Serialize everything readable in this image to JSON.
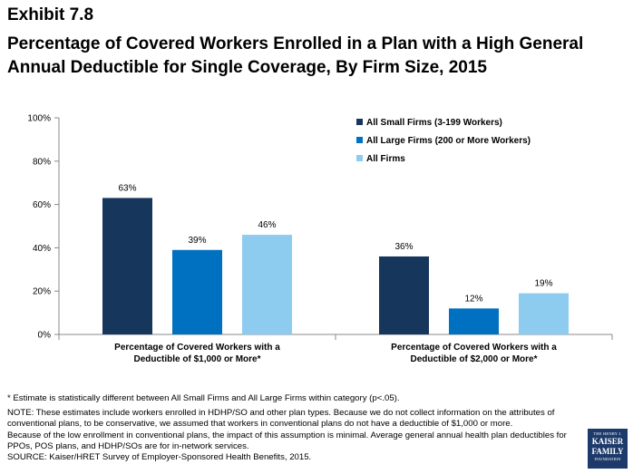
{
  "header": {
    "exhibit": "Exhibit 7.8",
    "title": "Percentage of Covered Workers Enrolled in a Plan with a High General Annual Deductible for Single Coverage, By Firm Size, 2015"
  },
  "chart_data": {
    "type": "bar",
    "title": "",
    "xlabel": "",
    "ylabel": "",
    "ylim": [
      0,
      100
    ],
    "yticks": [
      "0%",
      "20%",
      "40%",
      "60%",
      "80%",
      "100%"
    ],
    "categories": [
      "Percentage of Covered Workers with a Deductible of  $1,000 or More*",
      "Percentage of Covered Workers with a Deductible of  $2,000 or More*"
    ],
    "category_lines": [
      [
        "Percentage of Covered Workers with a",
        "Deductible of  $1,000 or More*"
      ],
      [
        "Percentage of Covered Workers with a",
        "Deductible of  $2,000 or More*"
      ]
    ],
    "series": [
      {
        "name": "All Small Firms (3-199 Workers)",
        "values": [
          63,
          36
        ],
        "labels": [
          "63%",
          "36%"
        ],
        "color": "#16365c"
      },
      {
        "name": "All Large Firms (200 or More Workers)",
        "values": [
          39,
          12
        ],
        "labels": [
          "39%",
          "12%"
        ],
        "color": "#0070c0"
      },
      {
        "name": "All Firms",
        "values": [
          46,
          19
        ],
        "labels": [
          "46%",
          "19%"
        ],
        "color": "#8dccef"
      }
    ],
    "legend": "top-right",
    "grid": false
  },
  "notes": {
    "asterisk": "* Estimate is statistically different between All Small Firms and All Large Firms within category (p<.05).",
    "note1": "NOTE: These estimates include workers enrolled in HDHP/SO and other plan types.  Because we do not collect information on the attributes of conventional plans, to be conservative, we assumed that workers in conventional plans do not have a deductible of $1,000 or more.",
    "note2": "Because of the low enrollment in conventional plans, the impact of this assumption is minimal.  Average general annual health plan deductibles for PPOs, POS plans, and HDHP/SOs are for in-network services.",
    "source": "SOURCE: Kaiser/HRET Survey of Employer-Sponsored Health Benefits, 2015."
  },
  "logo": {
    "line1": "THE HENRY J.",
    "line2": "KAISER",
    "line3": "FAMILY",
    "line4": "FOUNDATION"
  }
}
